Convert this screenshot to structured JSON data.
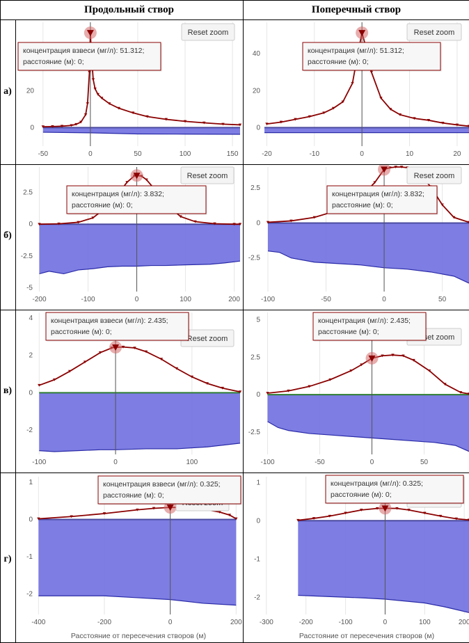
{
  "header": {
    "left_title": "Продольный створ",
    "right_title": "Поперечный створ"
  },
  "rows": [
    "а)",
    "б)",
    "в)",
    "г)"
  ],
  "reset_zoom_label": "Reset zoom",
  "colors": {
    "concentration": "#8b0000",
    "depth_fill": "#6f6fe0",
    "depth_line": "#2a2aa8",
    "marker_highlight": "#d46a6a",
    "zero_line_green": "#2e7d32"
  },
  "chart_data": [
    {
      "id": "a-long",
      "type": "area",
      "row": "а)",
      "column": "Продольный створ",
      "xlim": [
        -55,
        158
      ],
      "ylim": [
        -10,
        57
      ],
      "xticks": [
        -50,
        0,
        50,
        100,
        150
      ],
      "yticks": [
        0,
        20
      ],
      "series": [
        {
          "role": "concentration",
          "x": [
            -50,
            -40,
            -30,
            -20,
            -15,
            -10,
            -5,
            -3,
            -1,
            0,
            1,
            3,
            5,
            8,
            12,
            20,
            30,
            45,
            60,
            80,
            100,
            120,
            140,
            158
          ],
          "y": [
            0.5,
            0.6,
            0.8,
            1.2,
            1.8,
            3,
            7,
            13,
            30,
            51.312,
            40,
            26,
            21,
            18,
            16,
            13,
            10.5,
            8,
            6,
            4.5,
            3.4,
            2.6,
            1.9,
            1.5
          ]
        },
        {
          "role": "depth",
          "x": [
            -50,
            0,
            50,
            100,
            158
          ],
          "y": [
            -2.5,
            -2.8,
            -3.4,
            -3.5,
            -3.6
          ]
        }
      ],
      "tooltip": {
        "line1": "концентрация взвеси (мг/л): 51.312;",
        "line2": "расстояние (м): 0;"
      },
      "xlabel": "",
      "ylabel": ""
    },
    {
      "id": "a-trans",
      "type": "area",
      "row": "а)",
      "column": "Поперечный створ",
      "xlim": [
        -20.5,
        22.5
      ],
      "ylim": [
        -10,
        57
      ],
      "xticks": [
        -20,
        -10,
        0,
        10,
        20
      ],
      "yticks": [
        0,
        20,
        40
      ],
      "series": [
        {
          "role": "concentration",
          "x": [
            -20,
            -17,
            -14,
            -11,
            -8,
            -6,
            -4,
            -2,
            -1,
            0,
            1,
            2,
            4,
            6,
            8,
            11,
            14,
            17,
            20,
            22.5
          ],
          "y": [
            2,
            3,
            4.5,
            6,
            8,
            10.5,
            14,
            24,
            38,
            51.312,
            42,
            30,
            16,
            10,
            7,
            5,
            4,
            2.5,
            1.5,
            0.8
          ]
        },
        {
          "role": "depth",
          "x": [
            -20.5,
            0,
            22.5
          ],
          "y": [
            -2.7,
            -2.7,
            -2.7
          ]
        }
      ],
      "tooltip": {
        "line1": "концентрация (мг/л): 51.312;",
        "line2": "расстояние (м): 0;"
      },
      "xlabel": "",
      "ylabel": ""
    },
    {
      "id": "b-long",
      "type": "area",
      "row": "б)",
      "column": "Продольный створ",
      "xlim": [
        -205,
        212
      ],
      "ylim": [
        -5.3,
        4.5
      ],
      "xticks": [
        -200,
        -100,
        0,
        100,
        200
      ],
      "yticks": [
        -5,
        -2.5,
        0,
        2.5
      ],
      "series": [
        {
          "role": "concentration",
          "x": [
            -200,
            -160,
            -120,
            -90,
            -60,
            -40,
            -20,
            -5,
            0,
            10,
            20,
            40,
            60,
            90,
            120,
            160,
            200,
            212
          ],
          "y": [
            0,
            0.03,
            0.15,
            0.5,
            1.4,
            2.3,
            3.3,
            3.8,
            3.832,
            3.78,
            3.5,
            2.6,
            1.6,
            0.6,
            0.2,
            0.04,
            0,
            0
          ]
        },
        {
          "role": "depth",
          "x": [
            -200,
            -180,
            -150,
            -120,
            -90,
            -60,
            -30,
            0,
            30,
            60,
            100,
            150,
            180,
            212
          ],
          "y": [
            -3.9,
            -3.7,
            -3.9,
            -3.6,
            -3.5,
            -3.35,
            -3.3,
            -3.3,
            -3.25,
            -3.25,
            -3.2,
            -3.15,
            -3.05,
            -2.9
          ]
        }
      ],
      "tooltip": {
        "line1": "концентрация (мг/л): 3.832;",
        "line2": "расстояние (м): 0;"
      },
      "xlabel": "",
      "ylabel": ""
    },
    {
      "id": "b-trans",
      "type": "area",
      "row": "б)",
      "column": "Поперечный створ",
      "xlim": [
        -103,
        73
      ],
      "ylim": [
        -4.9,
        4.0
      ],
      "xticks": [
        -100,
        -50,
        0,
        50
      ],
      "yticks": [
        -2.5,
        0,
        2.5
      ],
      "series": [
        {
          "role": "concentration",
          "x": [
            -100,
            -80,
            -60,
            -40,
            -25,
            -15,
            -8,
            0,
            5,
            10,
            15,
            20,
            25,
            30,
            40,
            50,
            60,
            73
          ],
          "y": [
            0.05,
            0.15,
            0.4,
            0.9,
            1.6,
            2.3,
            2.9,
            3.832,
            3.95,
            4.0,
            4.0,
            3.95,
            3.8,
            3.5,
            2.6,
            1.3,
            0.4,
            0.05
          ]
        },
        {
          "role": "depth",
          "x": [
            -100,
            -90,
            -80,
            -60,
            -40,
            -20,
            0,
            20,
            40,
            60,
            73
          ],
          "y": [
            -2.0,
            -2.1,
            -2.5,
            -2.8,
            -2.9,
            -3.0,
            -3.2,
            -3.3,
            -3.5,
            -3.8,
            -4.3
          ]
        }
      ],
      "tooltip": {
        "line1": "концентрация (мг/л): 3.832;",
        "line2": "расстояние (м): 0;"
      },
      "xlabel": "",
      "ylabel": ""
    },
    {
      "id": "v-long",
      "type": "area",
      "row": "в)",
      "column": "Продольный створ",
      "xlim": [
        -103,
        163
      ],
      "ylim": [
        -3.3,
        4.3
      ],
      "xticks": [
        -100,
        0,
        100
      ],
      "yticks": [
        -2,
        0,
        2,
        4
      ],
      "series": [
        {
          "role": "concentration",
          "x": [
            -100,
            -80,
            -60,
            -40,
            -20,
            -5,
            0,
            10,
            25,
            40,
            60,
            80,
            100,
            120,
            140,
            163
          ],
          "y": [
            0.4,
            0.7,
            1.15,
            1.65,
            2.15,
            2.4,
            2.435,
            2.45,
            2.4,
            2.2,
            1.8,
            1.3,
            0.85,
            0.5,
            0.25,
            0.05
          ]
        },
        {
          "role": "depth",
          "x": [
            -100,
            -80,
            -50,
            -20,
            0,
            40,
            80,
            120,
            163
          ],
          "y": [
            -3.1,
            -3.15,
            -3.1,
            -3.05,
            -3.05,
            -3.0,
            -3.0,
            -2.9,
            -2.7
          ]
        }
      ],
      "tooltip": {
        "line1": "концентрация взвеси (мг/л): 2.435;",
        "line2": "расстояние (м): 0;"
      },
      "xlabel": "",
      "ylabel": ""
    },
    {
      "id": "v-trans",
      "type": "area",
      "row": "в)",
      "column": "Поперечный створ",
      "xlim": [
        -103,
        93
      ],
      "ylim": [
        -4.0,
        5.5
      ],
      "xticks": [
        -100,
        -50,
        0,
        50
      ],
      "yticks": [
        -2.5,
        0,
        2.5,
        5
      ],
      "series": [
        {
          "role": "concentration",
          "x": [
            -100,
            -80,
            -60,
            -40,
            -20,
            -10,
            0,
            10,
            20,
            30,
            40,
            55,
            70,
            85,
            93
          ],
          "y": [
            0.1,
            0.25,
            0.55,
            1.0,
            1.6,
            2.0,
            2.435,
            2.6,
            2.65,
            2.6,
            2.3,
            1.6,
            0.7,
            0.15,
            0.05
          ]
        },
        {
          "role": "depth",
          "x": [
            -100,
            -90,
            -80,
            -60,
            -40,
            -20,
            0,
            20,
            40,
            60,
            80,
            93
          ],
          "y": [
            -1.8,
            -2.2,
            -2.4,
            -2.6,
            -2.7,
            -2.8,
            -2.9,
            -3.0,
            -3.1,
            -3.2,
            -3.4,
            -3.8
          ]
        }
      ],
      "tooltip": {
        "line1": "концентрация (мг/л): 2.435;",
        "line2": "расстояние (м): 0;"
      },
      "xlabel": "",
      "ylabel": ""
    },
    {
      "id": "g-long",
      "type": "area",
      "row": "г)",
      "column": "Продольный створ",
      "xlim": [
        -405,
        212
      ],
      "ylim": [
        -2.55,
        1.15
      ],
      "xticks": [
        -400,
        -200,
        0,
        200
      ],
      "yticks": [
        -2,
        -1,
        0,
        1
      ],
      "series": [
        {
          "role": "concentration",
          "x": [
            -400,
            -300,
            -200,
            -100,
            -50,
            0,
            50,
            100,
            150,
            180,
            200
          ],
          "y": [
            0.02,
            0.08,
            0.16,
            0.26,
            0.3,
            0.325,
            0.32,
            0.28,
            0.2,
            0.12,
            0.02
          ]
        },
        {
          "role": "depth",
          "x": [
            -400,
            -300,
            -200,
            -100,
            0,
            100,
            200
          ],
          "y": [
            -2.05,
            -2.05,
            -2.05,
            -2.1,
            -2.15,
            -2.25,
            -2.3
          ]
        }
      ],
      "tooltip": {
        "line1": "концентрация взвеси (мг/л): 0.325;",
        "line2": "расстояние (м): 0;"
      },
      "xlabel": "Расстояние от пересечения створов (м)",
      "ylabel": ""
    },
    {
      "id": "g-trans",
      "type": "area",
      "row": "г)",
      "column": "Поперечный створ",
      "xlim": [
        -305,
        212
      ],
      "ylim": [
        -2.45,
        1.15
      ],
      "xticks": [
        -300,
        -200,
        -100,
        0,
        100,
        200
      ],
      "yticks": [
        -2,
        -1,
        0,
        1
      ],
      "series": [
        {
          "role": "concentration",
          "x": [
            -220,
            -180,
            -140,
            -100,
            -60,
            -20,
            0,
            30,
            60,
            100,
            140,
            180,
            212
          ],
          "y": [
            0.01,
            0.06,
            0.12,
            0.2,
            0.28,
            0.32,
            0.325,
            0.32,
            0.28,
            0.2,
            0.12,
            0.05,
            0.02
          ]
        },
        {
          "role": "depth",
          "x": [
            -220,
            -150,
            -100,
            -50,
            0,
            50,
            100,
            150,
            212
          ],
          "y": [
            -1.95,
            -1.98,
            -2.0,
            -2.02,
            -2.05,
            -2.1,
            -2.15,
            -2.25,
            -2.4
          ]
        }
      ],
      "tooltip": {
        "line1": "концентрация (мг/л): 0.325;",
        "line2": "расстояние (м): 0;"
      },
      "xlabel": "Расстояние от пересечения створов (м)",
      "ylabel": ""
    }
  ]
}
